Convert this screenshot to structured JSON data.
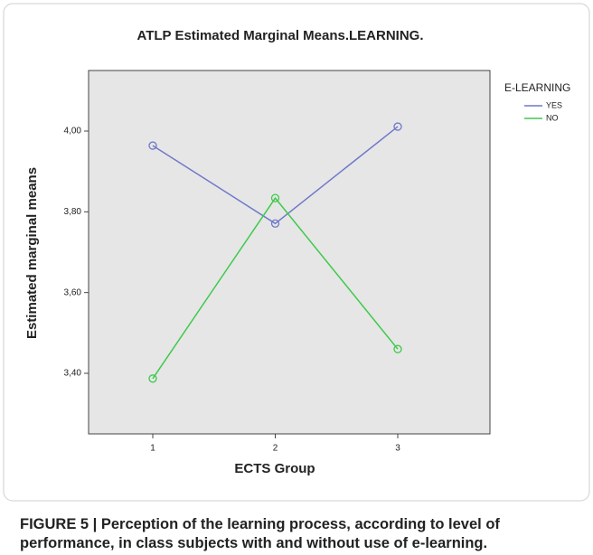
{
  "chart_data": {
    "type": "line",
    "title": "ATLP Estimated Marginal Means.LEARNING.",
    "x_label": "ECTS Group",
    "y_label": "Estimated marginal means",
    "legend_title": "E-LEARNING",
    "categories": [
      "1",
      "2",
      "3"
    ],
    "series": [
      {
        "name": "YES",
        "color": "#6f79c9",
        "values": [
          3.964,
          3.771,
          4.011
        ]
      },
      {
        "name": "NO",
        "color": "#3ec94c",
        "values": [
          3.387,
          3.834,
          3.46
        ]
      }
    ],
    "ylim": [
      3.25,
      4.15
    ],
    "yticks": [
      {
        "value": 3.4,
        "label": "3,40"
      },
      {
        "value": 3.6,
        "label": "3,60"
      },
      {
        "value": 3.8,
        "label": "3,80"
      },
      {
        "value": 4.0,
        "label": "4,00"
      }
    ],
    "legend": "right"
  },
  "caption": "FIGURE 5 | Perception of the learning process, according to level of performance, in class subjects with and without use of e-learning."
}
